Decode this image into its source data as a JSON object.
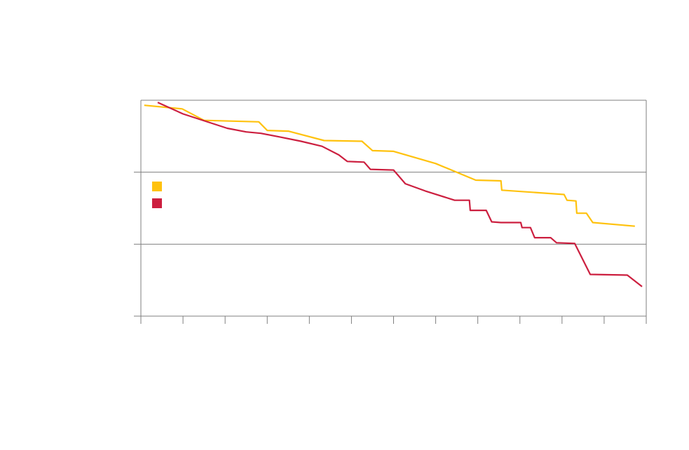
{
  "chart_data": {
    "type": "line",
    "title": "",
    "xlabel": "",
    "ylabel": "",
    "xlim": [
      0,
      12
    ],
    "ylim": [
      0,
      3
    ],
    "x_ticks": [
      0,
      1,
      2,
      3,
      4,
      5,
      6,
      7,
      8,
      9,
      10,
      11,
      12
    ],
    "y_gridlines": [
      1,
      2,
      3
    ],
    "grid": true,
    "legend": {
      "placement": "left-middle"
    },
    "series": [
      {
        "color": "#FFC20E",
        "points": [
          [
            0.08,
            2.93
          ],
          [
            0.98,
            2.88
          ],
          [
            1.5,
            2.72
          ],
          [
            2.8,
            2.7
          ],
          [
            3.0,
            2.58
          ],
          [
            3.5,
            2.57
          ],
          [
            4.35,
            2.44
          ],
          [
            5.25,
            2.43
          ],
          [
            5.5,
            2.3
          ],
          [
            6.0,
            2.29
          ],
          [
            7.0,
            2.12
          ],
          [
            7.95,
            1.89
          ],
          [
            8.55,
            1.88
          ],
          [
            8.57,
            1.75
          ],
          [
            10.05,
            1.69
          ],
          [
            10.12,
            1.61
          ],
          [
            10.33,
            1.6
          ],
          [
            10.35,
            1.43
          ],
          [
            10.58,
            1.43
          ],
          [
            10.73,
            1.3
          ],
          [
            11.73,
            1.25
          ]
        ]
      },
      {
        "color": "#CC1F3F",
        "points": [
          [
            0.4,
            2.97
          ],
          [
            1.0,
            2.81
          ],
          [
            2.05,
            2.61
          ],
          [
            2.5,
            2.56
          ],
          [
            2.85,
            2.54
          ],
          [
            3.3,
            2.49
          ],
          [
            3.8,
            2.43
          ],
          [
            4.3,
            2.36
          ],
          [
            4.7,
            2.24
          ],
          [
            4.9,
            2.15
          ],
          [
            5.3,
            2.14
          ],
          [
            5.45,
            2.04
          ],
          [
            6.0,
            2.03
          ],
          [
            6.28,
            1.84
          ],
          [
            6.75,
            1.74
          ],
          [
            7.45,
            1.61
          ],
          [
            7.8,
            1.61
          ],
          [
            7.82,
            1.47
          ],
          [
            8.2,
            1.47
          ],
          [
            8.33,
            1.31
          ],
          [
            8.55,
            1.3
          ],
          [
            9.02,
            1.3
          ],
          [
            9.05,
            1.23
          ],
          [
            9.25,
            1.23
          ],
          [
            9.35,
            1.09
          ],
          [
            9.73,
            1.09
          ],
          [
            9.87,
            1.02
          ],
          [
            10.3,
            1.01
          ],
          [
            10.67,
            0.58
          ],
          [
            11.55,
            0.57
          ],
          [
            11.9,
            0.41
          ]
        ]
      }
    ]
  }
}
